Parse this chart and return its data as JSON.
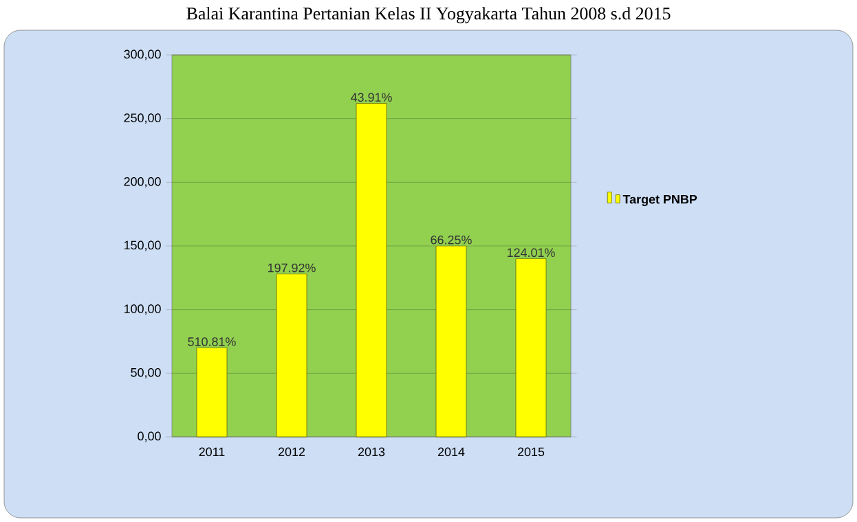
{
  "chart_data": {
    "type": "bar",
    "title": "Balai Karantina Pertanian Kelas II Yogyakarta Tahun 2008 s.d 2015",
    "categories": [
      "2011",
      "2012",
      "2013",
      "2014",
      "2015"
    ],
    "series": [
      {
        "name": "Target PNBP",
        "color": "#ffff00",
        "values": [
          70,
          128,
          262,
          150,
          140
        ]
      }
    ],
    "annotations": [
      "510.81%",
      "197.92%",
      "43.91%",
      "66.25%",
      "124.01%"
    ],
    "ylim": [
      0,
      300
    ],
    "yticks": [
      {
        "value": 0,
        "label": "0,00"
      },
      {
        "value": 50,
        "label": "50,00"
      },
      {
        "value": 100,
        "label": "100,00"
      },
      {
        "value": 150,
        "label": "150,00"
      },
      {
        "value": 200,
        "label": "200,00"
      },
      {
        "value": 250,
        "label": "250,00"
      },
      {
        "value": 300,
        "label": "300,00"
      }
    ],
    "grid": "y",
    "legend": "right"
  }
}
